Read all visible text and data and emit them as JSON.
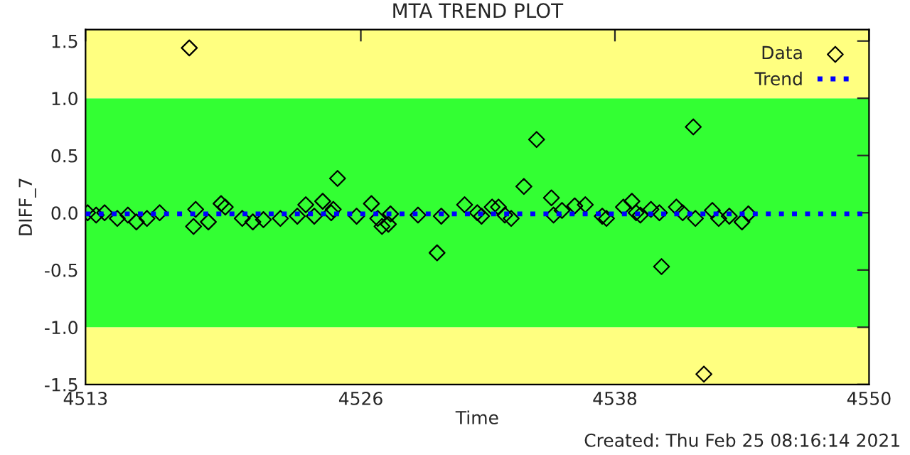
{
  "chart_data": {
    "type": "scatter",
    "title": "MTA TREND PLOT",
    "xlabel": "Time",
    "ylabel": "DIFF_7",
    "annotations": [
      "Created: Thu Feb 25 08:16:14 2021"
    ],
    "xlim": [
      4513,
      4550
    ],
    "xticks": [
      4513,
      4526,
      4538,
      4550
    ],
    "ylim": [
      -1.5,
      1.6
    ],
    "yticks": [
      {
        "value": -1.5,
        "label": "-1.5"
      },
      {
        "value": -1.0,
        "label": "-1.0"
      },
      {
        "value": -0.5,
        "label": "-0.5"
      },
      {
        "value": 0,
        "label": "0.0"
      },
      {
        "value": 0.5,
        "label": "0.5"
      },
      {
        "value": 1.0,
        "label": "1.0"
      },
      {
        "value": 1.5,
        "label": "1.5"
      }
    ],
    "grid": false,
    "legend": "top right",
    "bands": [
      {
        "axis": "y",
        "from": -1.5,
        "to": -1.0,
        "color": "#ffff80"
      },
      {
        "axis": "y",
        "from": -1.0,
        "to": 1.0,
        "color": "#33ff33"
      },
      {
        "axis": "y",
        "from": 1.0,
        "to": 1.6,
        "color": "#ffff80"
      }
    ],
    "series": [
      {
        "name": "Data",
        "marker": "diamond",
        "color": "#000000",
        "x": [
          4513.1,
          4513.5,
          4513.9,
          4514.5,
          4515.0,
          4515.4,
          4515.9,
          4516.5,
          4517.9,
          4518.1,
          4518.2,
          4518.8,
          4519.4,
          4519.6,
          4520.4,
          4520.9,
          4521.4,
          4522.2,
          4523.0,
          4523.4,
          4523.8,
          4524.2,
          4524.6,
          4524.7,
          4524.9,
          4525.8,
          4526.5,
          4526.8,
          4527.0,
          4527.3,
          4527.4,
          4528.7,
          4529.6,
          4529.8,
          4530.9,
          4531.5,
          4531.7,
          4532.2,
          4532.5,
          4532.8,
          4533.1,
          4533.7,
          4534.3,
          4535.0,
          4535.1,
          4535.5,
          4536.1,
          4536.6,
          4537.4,
          4537.6,
          4538.4,
          4538.8,
          4539.0,
          4539.2,
          4539.7,
          4540.1,
          4540.2,
          4540.9,
          4541.2,
          4541.7,
          4541.8,
          4542.2,
          4542.6,
          4542.9,
          4543.4,
          4544.0,
          4544.3
        ],
        "values": [
          0.0,
          -0.02,
          0.0,
          -0.05,
          -0.02,
          -0.08,
          -0.05,
          0.0,
          1.44,
          -0.12,
          0.03,
          -0.08,
          0.08,
          0.05,
          -0.05,
          -0.08,
          -0.06,
          -0.05,
          -0.03,
          0.07,
          -0.03,
          0.1,
          0.0,
          0.03,
          0.3,
          -0.03,
          0.08,
          -0.05,
          -0.12,
          -0.1,
          -0.01,
          -0.02,
          -0.35,
          -0.03,
          0.07,
          0.0,
          -0.03,
          0.05,
          0.05,
          -0.02,
          -0.05,
          0.23,
          0.64,
          0.13,
          -0.02,
          0.02,
          0.06,
          0.07,
          -0.03,
          -0.05,
          0.05,
          0.1,
          0.0,
          -0.02,
          0.03,
          0.0,
          -0.47,
          0.05,
          0.0,
          0.75,
          -0.05,
          -1.41,
          0.02,
          -0.05,
          -0.03,
          -0.08,
          -0.01
        ]
      },
      {
        "name": "Trend",
        "type": "line",
        "line_style": "dotted",
        "color": "#0000ff",
        "x": [
          4513,
          4550
        ],
        "values": [
          -0.01,
          -0.01
        ]
      }
    ]
  }
}
